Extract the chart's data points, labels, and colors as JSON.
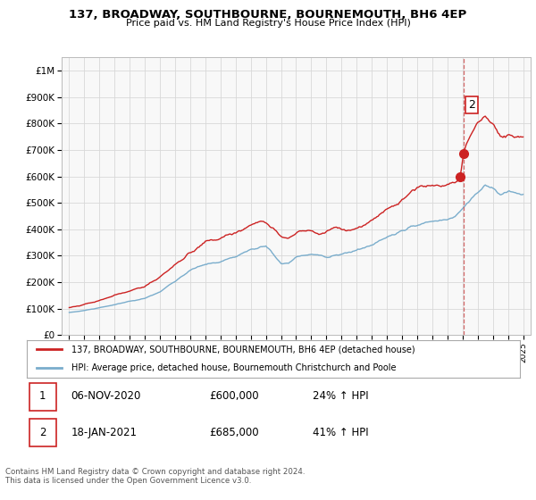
{
  "title": "137, BROADWAY, SOUTHBOURNE, BOURNEMOUTH, BH6 4EP",
  "subtitle": "Price paid vs. HM Land Registry's House Price Index (HPI)",
  "red_label": "137, BROADWAY, SOUTHBOURNE, BOURNEMOUTH, BH6 4EP (detached house)",
  "blue_label": "HPI: Average price, detached house, Bournemouth Christchurch and Poole",
  "footer": "Contains HM Land Registry data © Crown copyright and database right 2024.\nThis data is licensed under the Open Government Licence v3.0.",
  "table_rows": [
    {
      "num": "1",
      "date": "06-NOV-2020",
      "price": "£600,000",
      "hpi": "24% ↑ HPI"
    },
    {
      "num": "2",
      "date": "18-JAN-2021",
      "price": "£685,000",
      "hpi": "41% ↑ HPI"
    }
  ],
  "sale1_x": 2020.85,
  "sale1_y": 600000,
  "sale2_x": 2021.05,
  "sale2_y": 685000,
  "dashed_x": 2021.05,
  "ylim": [
    0,
    1050000
  ],
  "xlim": [
    1994.5,
    2025.5
  ],
  "background_color": "#ffffff",
  "plot_bg_color": "#f8f8f8",
  "grid_color": "#d8d8d8",
  "red_color": "#cc2222",
  "blue_color": "#7aadcc",
  "dashed_color": "#cc4444",
  "anno_box_color": "#cc2222"
}
